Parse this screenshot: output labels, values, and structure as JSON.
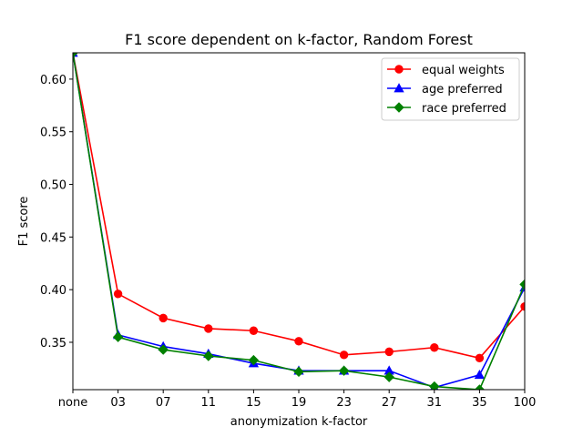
{
  "chart_data": {
    "type": "line",
    "title": "F1 score dependent on k-factor, Random Forest",
    "xlabel": "anonymization k-factor",
    "ylabel": "F1 score",
    "categories": [
      "none",
      "03",
      "07",
      "11",
      "15",
      "19",
      "23",
      "27",
      "31",
      "35",
      "100"
    ],
    "ylim": [
      0.305,
      0.625
    ],
    "yticks": [
      0.35,
      0.4,
      0.45,
      0.5,
      0.55,
      0.6
    ],
    "ytick_labels": [
      "0.35",
      "0.40",
      "0.45",
      "0.50",
      "0.55",
      "0.60"
    ],
    "grid": false,
    "legend_position": "top-right",
    "series": [
      {
        "name": "equal weights",
        "color": "#ff0000",
        "marker": "circle",
        "values": [
          0.625,
          0.396,
          0.373,
          0.363,
          0.361,
          0.351,
          0.338,
          0.341,
          0.345,
          0.335,
          0.384
        ]
      },
      {
        "name": "age preferred",
        "color": "#0000ff",
        "marker": "triangle",
        "values": [
          0.625,
          0.357,
          0.346,
          0.339,
          0.33,
          0.323,
          0.323,
          0.323,
          0.307,
          0.319,
          0.402
        ]
      },
      {
        "name": "race preferred",
        "color": "#008000",
        "marker": "diamond",
        "values": [
          0.625,
          0.355,
          0.343,
          0.337,
          0.333,
          0.322,
          0.323,
          0.317,
          0.308,
          0.305,
          0.405
        ]
      }
    ]
  }
}
